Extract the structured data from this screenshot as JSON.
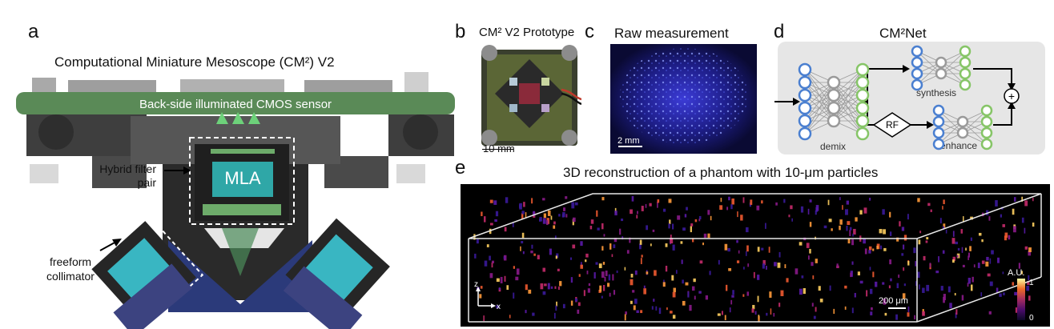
{
  "panels": {
    "a": {
      "letter": "a",
      "title": "Computational Miniature Mesoscope (CM²) V2",
      "sensor_label": "Back-side illuminated CMOS sensor",
      "mla_label": "MLA",
      "filter_label_line1": "Hybrid filter",
      "filter_label_line2": "pair",
      "collimator_label_line1": "freeform",
      "collimator_label_line2": "collimator"
    },
    "b": {
      "letter": "b",
      "title": "CM² V2 Prototype",
      "scalebar": "10 mm"
    },
    "c": {
      "letter": "c",
      "title": "Raw measurement",
      "scalebar": "2 mm"
    },
    "d": {
      "letter": "d",
      "title": "CM²Net",
      "demix": "demix",
      "synthesis": "synthesis",
      "enhance": "enhance",
      "rf": "RF",
      "plus": "+"
    },
    "e": {
      "letter": "e",
      "title": "3D reconstruction of a phantom with 10-μm particles",
      "scalebar": "200 μm",
      "axis_z": "z",
      "axis_x": "x",
      "colorbar_label": "A.U.",
      "colorbar_max": "1",
      "colorbar_min": "0"
    }
  },
  "colors": {
    "sensor_green": "#5a8a57",
    "mla_teal": "#2fa7a7",
    "node_blue": "#4a7fd0",
    "node_gray": "#9a9a9a",
    "node_green": "#86c567",
    "recon_bg": "#000000"
  }
}
